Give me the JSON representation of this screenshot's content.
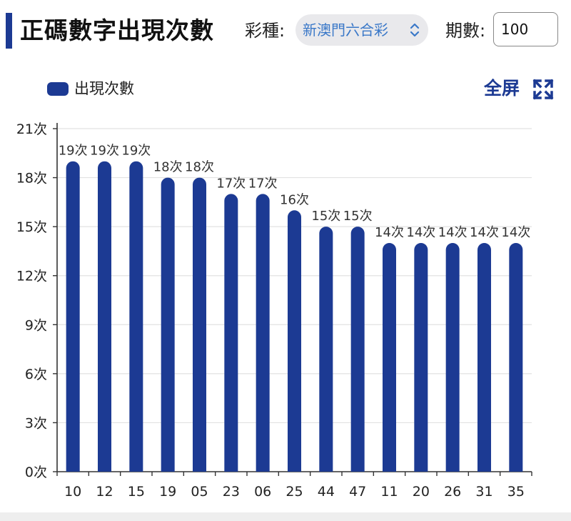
{
  "header": {
    "title": "正碼數字出現次數",
    "lottery_label": "彩種:",
    "lottery_value": "新澳門六合彩",
    "period_label": "期數:",
    "period_value": "100"
  },
  "legend": {
    "label": "出現次數"
  },
  "fullscreen": {
    "label": "全屏"
  },
  "colors": {
    "bar": "#1c3a93",
    "accent": "#1c3a93",
    "select_text": "#3a78c8"
  },
  "chart_data": {
    "type": "bar",
    "title": "",
    "xlabel": "",
    "ylabel": "",
    "categories": [
      "10",
      "12",
      "15",
      "19",
      "05",
      "23",
      "06",
      "25",
      "44",
      "47",
      "11",
      "20",
      "26",
      "31",
      "35"
    ],
    "series": [
      {
        "name": "出現次數",
        "values": [
          19,
          19,
          19,
          18,
          18,
          17,
          17,
          16,
          15,
          15,
          14,
          14,
          14,
          14,
          14
        ]
      }
    ],
    "ylim": [
      0,
      21
    ],
    "yticks": [
      0,
      3,
      6,
      9,
      12,
      15,
      18,
      21
    ],
    "tick_suffix": "次",
    "data_label_suffix": "次",
    "grid": true,
    "legend_position": "top-left"
  }
}
